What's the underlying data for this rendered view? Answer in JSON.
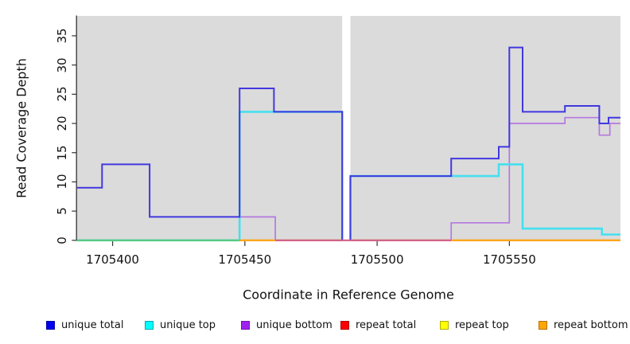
{
  "chart_data": {
    "type": "line",
    "subtype": "step-coverage-plot",
    "title": "",
    "xlabel": "Coordinate in Reference Genome",
    "ylabel": "Read Coverage Depth",
    "xlim": [
      1705386.5,
      1705592
    ],
    "ylim": [
      0,
      38.4
    ],
    "x_ticks": [
      1705400,
      1705450,
      1705500,
      1705550
    ],
    "y_ticks": [
      0,
      5,
      10,
      15,
      20,
      25,
      30,
      35
    ],
    "gap_x": [
      1705486.8,
      1705489.9
    ],
    "panel_bg": "#dbdbdb",
    "grid": false,
    "legend_position": "bottom",
    "series": [
      {
        "name": "unique total",
        "color": "#4238df",
        "width": 2,
        "panel1": [
          [
            1705386.5,
            9
          ],
          [
            1705396,
            9
          ],
          [
            1705396,
            13
          ],
          [
            1705414,
            13
          ],
          [
            1705414,
            4
          ],
          [
            1705448,
            4
          ],
          [
            1705448,
            26
          ],
          [
            1705461,
            26
          ],
          [
            1705461,
            22
          ],
          [
            1705486.8,
            22
          ],
          [
            1705486.8,
            0
          ]
        ],
        "panel2": [
          [
            1705489.9,
            0
          ],
          [
            1705489.9,
            11
          ],
          [
            1705528,
            11
          ],
          [
            1705528,
            14
          ],
          [
            1705546,
            14
          ],
          [
            1705546,
            16
          ],
          [
            1705550,
            16
          ],
          [
            1705550,
            33
          ],
          [
            1705555,
            33
          ],
          [
            1705555,
            22
          ],
          [
            1705571,
            22
          ],
          [
            1705571,
            23
          ],
          [
            1705584,
            23
          ],
          [
            1705584,
            20
          ],
          [
            1705587.5,
            20
          ],
          [
            1705587.5,
            21
          ],
          [
            1705592,
            21
          ]
        ]
      },
      {
        "name": "unique top",
        "color": "#45e0ef",
        "width": 2.6,
        "panel1": [
          [
            1705386.5,
            0
          ],
          [
            1705448,
            0
          ],
          [
            1705448,
            22
          ],
          [
            1705486.8,
            22
          ],
          [
            1705486.8,
            0
          ]
        ],
        "panel2": [
          [
            1705489.9,
            0
          ],
          [
            1705489.9,
            11
          ],
          [
            1705546,
            11
          ],
          [
            1705546,
            13
          ],
          [
            1705555,
            13
          ],
          [
            1705555,
            2
          ],
          [
            1705585,
            2
          ],
          [
            1705585,
            1
          ],
          [
            1705592,
            1
          ]
        ]
      },
      {
        "name": "unique bottom",
        "color": "#b678e0",
        "width": 1.7,
        "panel1": [
          [
            1705386.5,
            0
          ],
          [
            1705448,
            0
          ],
          [
            1705448,
            4
          ],
          [
            1705461.5,
            4
          ],
          [
            1705461.5,
            0
          ],
          [
            1705486.8,
            0
          ]
        ],
        "panel2": [
          [
            1705489.9,
            0
          ],
          [
            1705528,
            0
          ],
          [
            1705528,
            3
          ],
          [
            1705550,
            3
          ],
          [
            1705550,
            20
          ],
          [
            1705571,
            20
          ],
          [
            1705571,
            21
          ],
          [
            1705584,
            21
          ],
          [
            1705584,
            18
          ],
          [
            1705588,
            18
          ],
          [
            1705588,
            20
          ],
          [
            1705592,
            20
          ]
        ]
      },
      {
        "name": "repeat total",
        "color": "#e02020",
        "width": 1.6,
        "panel1": [
          [
            1705386.5,
            0
          ],
          [
            1705486.8,
            0
          ]
        ],
        "panel2": [
          [
            1705489.9,
            0
          ],
          [
            1705592,
            0
          ]
        ]
      },
      {
        "name": "repeat top",
        "color": "#f5f500",
        "width": 1.6,
        "panel1": [
          [
            1705386.5,
            0
          ],
          [
            1705486.8,
            0
          ]
        ],
        "panel2": [
          [
            1705489.9,
            0
          ],
          [
            1705592,
            0
          ]
        ]
      },
      {
        "name": "repeat bottom",
        "color": "#ffa516",
        "width": 2,
        "panel1": [
          [
            1705386.5,
            0
          ],
          [
            1705486.8,
            0
          ]
        ],
        "panel2": [
          [
            1705489.9,
            0
          ],
          [
            1705592,
            0
          ]
        ]
      }
    ],
    "draw_order": [
      4,
      3,
      5,
      2,
      1,
      0
    ],
    "baseline_overlays": [
      {
        "x0": 1705386.5,
        "x1": 1705448,
        "color": "#5ec87a"
      },
      {
        "x0": 1705448,
        "x1": 1705461.5,
        "color": "#ffa516"
      },
      {
        "x0": 1705461.5,
        "x1": 1705528,
        "color": "#cf5f8b"
      },
      {
        "x0": 1705528,
        "x1": 1705592,
        "color": "#ffa516"
      }
    ],
    "legend": [
      {
        "label": "unique total",
        "fill": "#0000ee",
        "border": "#0000a8"
      },
      {
        "label": "unique top",
        "fill": "#00ffff",
        "border": "#00a8b0"
      },
      {
        "label": "unique bottom",
        "fill": "#a020f0",
        "border": "#7218ae"
      },
      {
        "label": "repeat total",
        "fill": "#ff0000",
        "border": "#b00000"
      },
      {
        "label": "repeat top",
        "fill": "#ffff00",
        "border": "#b0b000"
      },
      {
        "label": "repeat bottom",
        "fill": "#ffa500",
        "border": "#b57100"
      }
    ]
  }
}
